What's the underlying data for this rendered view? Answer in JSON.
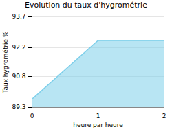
{
  "chart_data": {
    "type": "area",
    "title": "Evolution du taux d'hygrométrie",
    "xlabel": "heure par heure",
    "ylabel": "Taux hygrométrie %",
    "x": [
      0,
      1,
      2
    ],
    "values": [
      89.7,
      92.55,
      92.55
    ],
    "color": "#7ecfea",
    "xlim": [
      0,
      2
    ],
    "ylim": [
      89.3,
      93.7
    ],
    "xticks": [
      0,
      1,
      2
    ],
    "yticks": [
      89.3,
      90.8,
      92.2,
      93.7
    ],
    "grid": "y"
  }
}
